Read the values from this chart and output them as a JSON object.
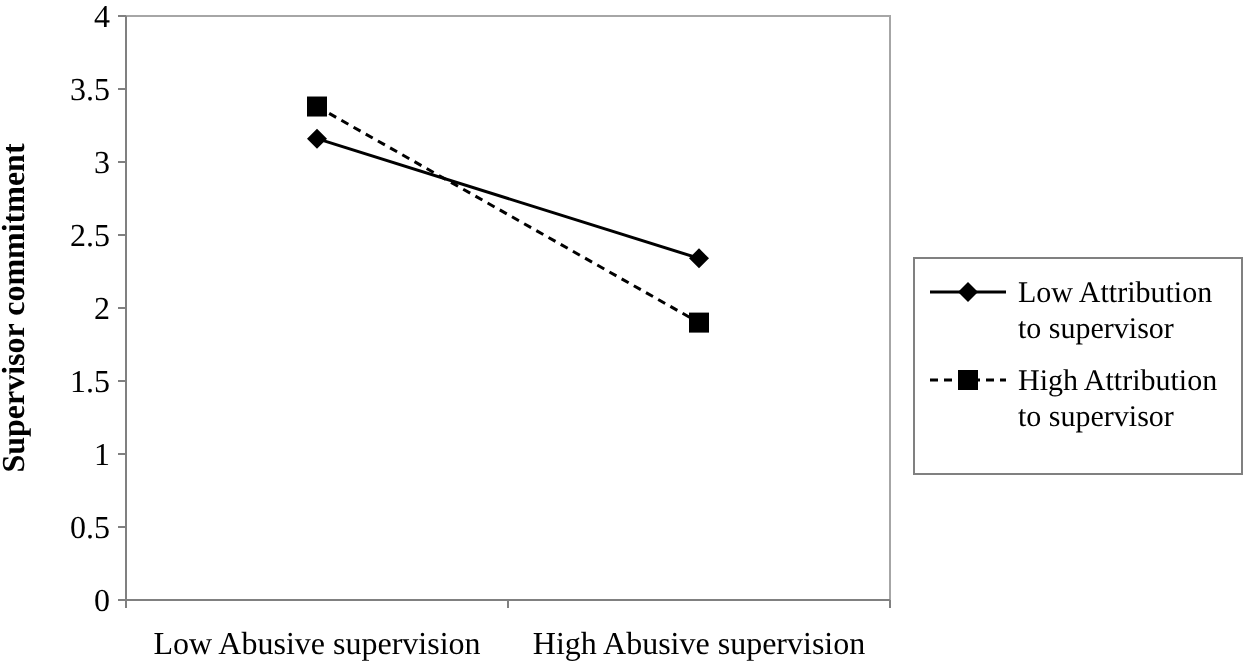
{
  "chart_data": {
    "type": "line",
    "ylabel": "Supervisor commitment",
    "categories": [
      "Low Abusive supervision",
      "High Abusive supervision"
    ],
    "series": [
      {
        "name": "Low Attribution to supervisor",
        "color": "#000000",
        "values": [
          3.16,
          2.34
        ],
        "marker": "diamond",
        "line_style": "solid"
      },
      {
        "name": "High Attribution to supervisor",
        "color": "#000000",
        "values": [
          3.38,
          1.9
        ],
        "marker": "square",
        "line_style": "dashed"
      }
    ],
    "ylim": [
      0,
      4
    ],
    "yticks": [
      0,
      0.5,
      1,
      1.5,
      2,
      2.5,
      3,
      3.5,
      4
    ],
    "grid": false,
    "legend": "right"
  }
}
